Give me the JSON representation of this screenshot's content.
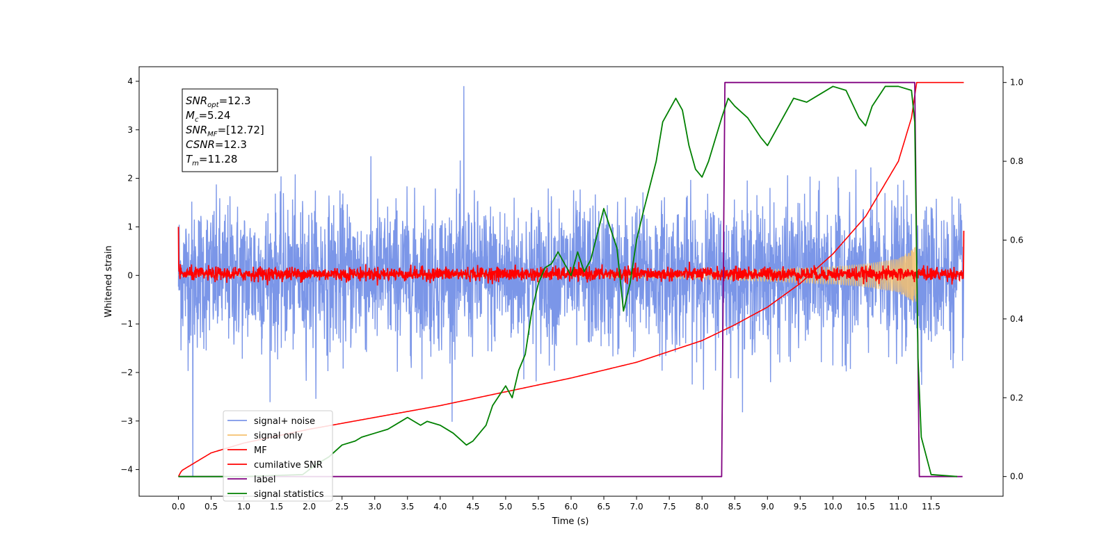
{
  "chart_data": {
    "type": "line",
    "xlabel": "Time (s)",
    "ylabel": "Whitened strain",
    "xlim": [
      -0.6,
      12.6
    ],
    "ylim": [
      -4.55,
      4.3
    ],
    "y2lim": [
      -0.05,
      1.04
    ],
    "grid": false,
    "legend_placement": "lower-left",
    "x_ticks": [
      "0.0",
      "0.5",
      "1.0",
      "1.5",
      "2.0",
      "2.5",
      "3.0",
      "3.5",
      "4.0",
      "4.5",
      "5.0",
      "5.5",
      "6.0",
      "6.5",
      "7.0",
      "7.5",
      "8.0",
      "8.5",
      "9.0",
      "9.5",
      "10.0",
      "10.5",
      "11.0",
      "11.5"
    ],
    "x_tick_values": [
      0.0,
      0.5,
      1.0,
      1.5,
      2.0,
      2.5,
      3.0,
      3.5,
      4.0,
      4.5,
      5.0,
      5.5,
      6.0,
      6.5,
      7.0,
      7.5,
      8.0,
      8.5,
      9.0,
      9.5,
      10.0,
      10.5,
      11.0,
      11.5
    ],
    "y_ticks": [
      "−4",
      "−3",
      "−2",
      "−1",
      "0",
      "1",
      "2",
      "3",
      "4"
    ],
    "y_tick_values": [
      -4,
      -3,
      -2,
      -1,
      0,
      1,
      2,
      3,
      4
    ],
    "y2_ticks": [
      "0.0",
      "0.2",
      "0.4",
      "0.6",
      "0.8",
      "1.0"
    ],
    "y2_tick_values": [
      0.0,
      0.2,
      0.4,
      0.6,
      0.8,
      1.0
    ],
    "annotations": [
      {
        "base": "SNR",
        "sub": "opt",
        "value": "=12.3"
      },
      {
        "base": "M",
        "sub": "c",
        "value": "=5.24"
      },
      {
        "base": "SNR",
        "sub": "MF",
        "value": "=[12.72]"
      },
      {
        "base": "CSNR",
        "sub": "",
        "value": "=12.3"
      },
      {
        "base": "T",
        "sub": "m",
        "value": "=11.28"
      }
    ],
    "series": [
      {
        "name": "signal+ noise",
        "axis": "left",
        "color": "#7b96e8",
        "x_range": [
          0.0,
          12.0
        ],
        "samples": 3000,
        "amplitude_sigma": 0.75,
        "peak_y": [
          -4.15,
          3.9
        ]
      },
      {
        "name": "signal only",
        "axis": "left",
        "color": "#f5c16e",
        "x_range": [
          0.0,
          11.28
        ],
        "envelope": {
          "x": [
            0.0,
            5.0,
            7.0,
            8.0,
            9.0,
            10.0,
            10.5,
            11.0,
            11.2,
            11.28
          ],
          "amp": [
            0.02,
            0.03,
            0.05,
            0.08,
            0.12,
            0.18,
            0.24,
            0.35,
            0.52,
            0.62
          ]
        }
      },
      {
        "name": "MF",
        "axis": "left",
        "color": "#ff0000",
        "x_range": [
          0.0,
          12.0
        ],
        "baseline": 0.03,
        "noise_sigma": 0.07,
        "start_value": 1.0,
        "end_value": 0.92
      },
      {
        "name": "cumilative SNR",
        "axis": "right",
        "color": "#ff0000",
        "x": [
          0.0,
          0.05,
          0.5,
          1.0,
          2.0,
          3.0,
          4.0,
          5.0,
          6.0,
          7.0,
          8.0,
          8.5,
          9.0,
          9.5,
          10.0,
          10.5,
          11.0,
          11.2,
          11.28,
          12.0
        ],
        "values": [
          0.0,
          0.015,
          0.06,
          0.085,
          0.12,
          0.15,
          0.18,
          0.215,
          0.25,
          0.29,
          0.345,
          0.385,
          0.43,
          0.49,
          0.565,
          0.66,
          0.8,
          0.91,
          1.0,
          1.0
        ]
      },
      {
        "name": "label",
        "axis": "right",
        "color": "#800080",
        "x": [
          0.0,
          8.3,
          8.35,
          11.25,
          11.32,
          11.98
        ],
        "values": [
          0.0,
          0.0,
          1.0,
          1.0,
          0.0,
          0.0
        ]
      },
      {
        "name": "signal statistics",
        "axis": "right",
        "color": "#008000",
        "x": [
          0.0,
          1.0,
          1.9,
          2.1,
          2.3,
          2.5,
          2.7,
          2.8,
          3.0,
          3.2,
          3.4,
          3.5,
          3.7,
          3.8,
          4.0,
          4.2,
          4.4,
          4.5,
          4.7,
          4.8,
          5.0,
          5.1,
          5.2,
          5.3,
          5.4,
          5.5,
          5.6,
          5.7,
          5.8,
          6.0,
          6.1,
          6.2,
          6.3,
          6.5,
          6.7,
          6.8,
          6.9,
          7.0,
          7.1,
          7.3,
          7.4,
          7.6,
          7.7,
          7.8,
          7.9,
          8.0,
          8.1,
          8.3,
          8.4,
          8.5,
          8.7,
          8.9,
          9.0,
          9.2,
          9.4,
          9.6,
          9.8,
          10.0,
          10.2,
          10.4,
          10.5,
          10.6,
          10.8,
          11.0,
          11.2,
          11.25,
          11.3,
          11.35,
          11.5,
          11.9
        ],
        "values": [
          0.0,
          0.0,
          0.005,
          0.03,
          0.05,
          0.08,
          0.09,
          0.1,
          0.11,
          0.12,
          0.14,
          0.15,
          0.13,
          0.14,
          0.13,
          0.11,
          0.08,
          0.09,
          0.13,
          0.18,
          0.23,
          0.2,
          0.27,
          0.31,
          0.42,
          0.49,
          0.53,
          0.54,
          0.57,
          0.51,
          0.57,
          0.52,
          0.55,
          0.68,
          0.58,
          0.42,
          0.49,
          0.6,
          0.67,
          0.8,
          0.9,
          0.96,
          0.93,
          0.84,
          0.78,
          0.76,
          0.8,
          0.91,
          0.96,
          0.94,
          0.91,
          0.86,
          0.84,
          0.9,
          0.96,
          0.95,
          0.97,
          0.99,
          0.98,
          0.91,
          0.89,
          0.94,
          0.99,
          0.99,
          0.98,
          0.9,
          0.3,
          0.1,
          0.005,
          0.0
        ]
      }
    ]
  }
}
